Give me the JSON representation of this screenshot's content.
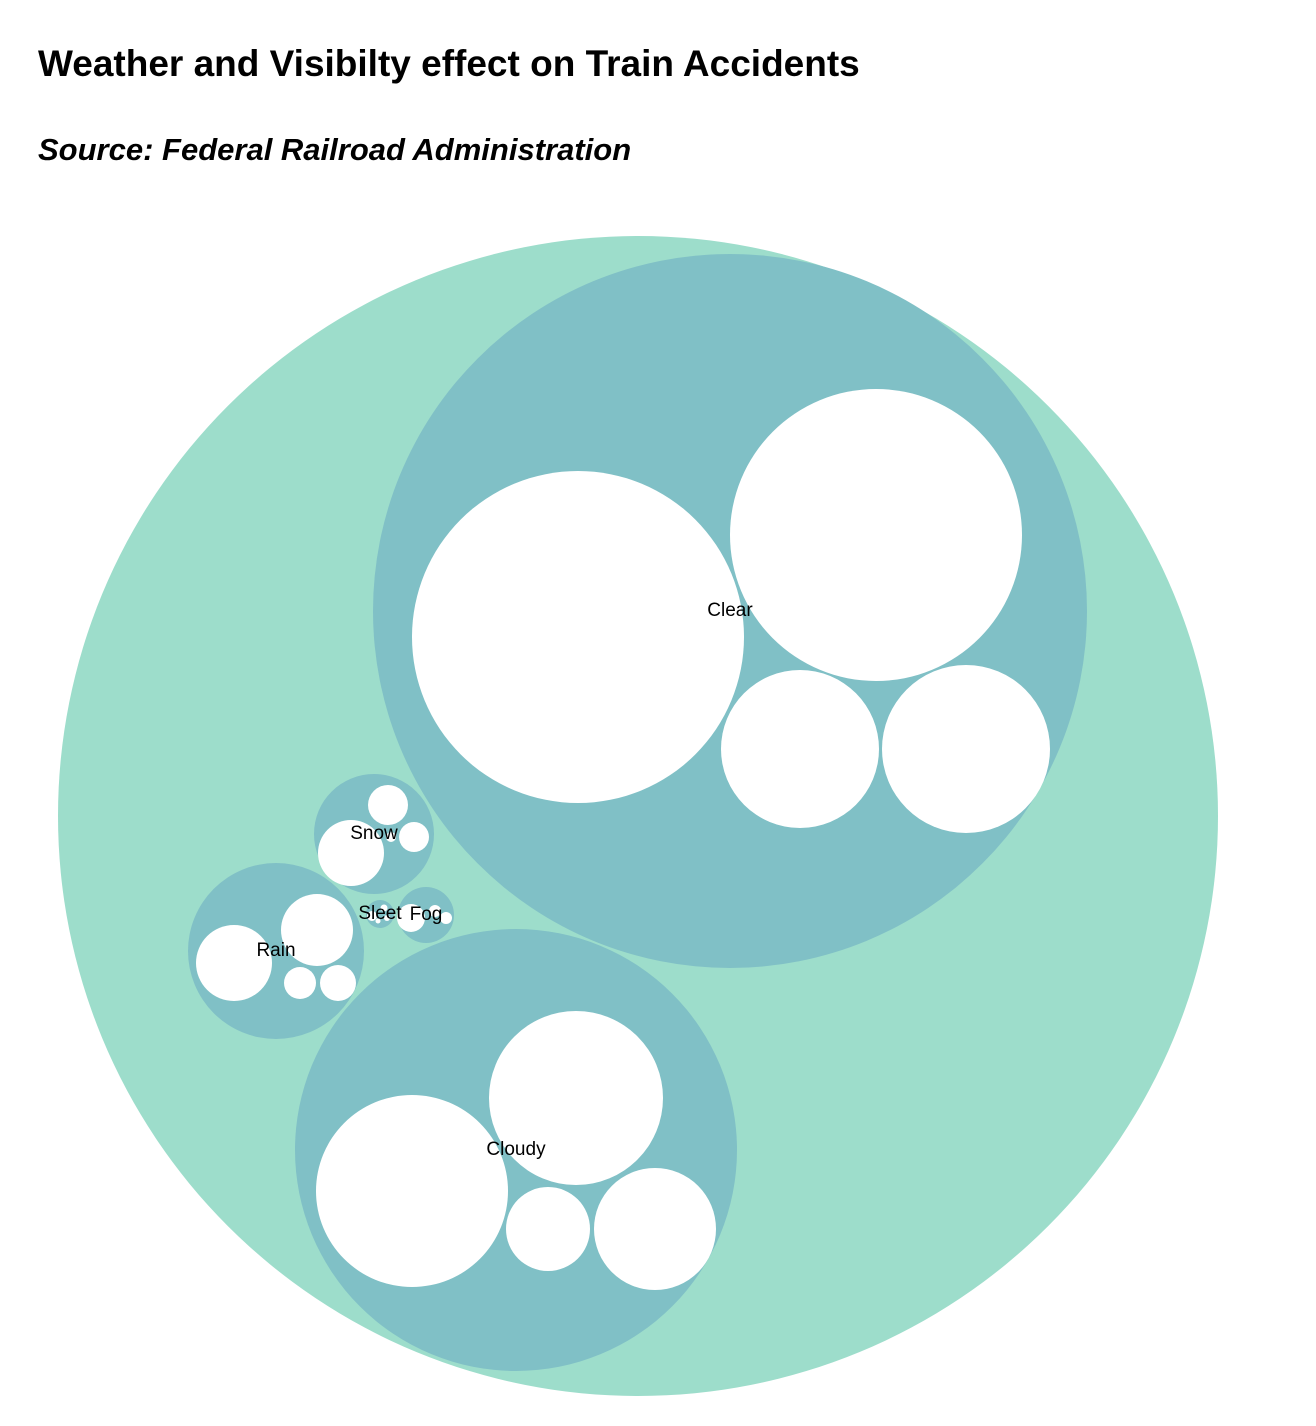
{
  "header": {
    "title": "Weather and Visibilty effect on Train Accidents",
    "subtitle": "Source: Federal Railroad Administration"
  },
  "colors": {
    "root": "#9dddcb",
    "group": "#80c0c6",
    "leaf": "#ffffff",
    "label": "#000000"
  },
  "chart_data": {
    "type": "circle-packing",
    "title": "Weather and Visibilty effect on Train Accidents",
    "subtitle": "Source: Federal Railroad Administration",
    "groups": [
      {
        "name": "Clear",
        "values": [
          1050,
          810,
          270,
          300
        ]
      },
      {
        "name": "Cloudy",
        "values": [
          380,
          310,
          75,
          150
        ]
      },
      {
        "name": "Rain",
        "values": [
          55,
          52,
          9,
          12
        ]
      },
      {
        "name": "Snow",
        "values": [
          42,
          16,
          8,
          2
        ]
      },
      {
        "name": "Sleet",
        "values": [
          1.2,
          0.6,
          0.5,
          0.4
        ]
      },
      {
        "name": "Fog",
        "values": [
          7,
          1.5,
          0.8
        ]
      }
    ]
  }
}
